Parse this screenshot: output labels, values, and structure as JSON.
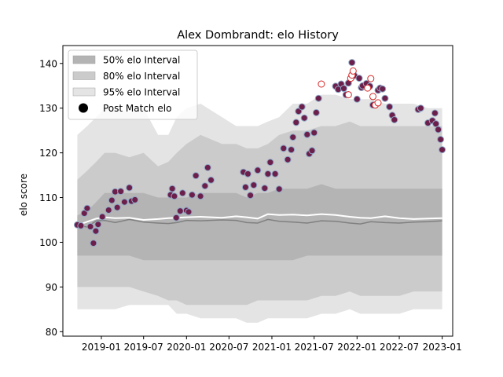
{
  "chart_data": {
    "type": "scatter",
    "title": "Alex Dombrandt: elo History",
    "xlabel": "",
    "ylabel": "elo score",
    "x_axis_kind": "date",
    "xlim": [
      "2018-07-20",
      "2023-02-15"
    ],
    "ylim": [
      79,
      144
    ],
    "xticks": [
      "2019-01",
      "2019-07",
      "2020-01",
      "2020-07",
      "2021-01",
      "2021-07",
      "2022-01",
      "2022-07",
      "2023-01"
    ],
    "yticks": [
      80,
      90,
      100,
      110,
      120,
      130,
      140
    ],
    "legend_position": "top-left",
    "legend": [
      {
        "key": "band50",
        "label": "50% elo Interval"
      },
      {
        "key": "band80",
        "label": "80% elo Interval"
      },
      {
        "key": "band95",
        "label": "95% elo Interval"
      },
      {
        "key": "post",
        "label": "Post Match elo"
      }
    ],
    "colors": {
      "band50": "#b4b4b4",
      "band80": "#cbcbcb",
      "band95": "#e4e4e4",
      "mean_line": "#ffffff",
      "median_line": "#808080",
      "point_fill": "#6b1f4a",
      "point_edge": "#8fa8c8",
      "open_point_edge": "#d62728"
    },
    "intervals": {
      "x": [
        "2018-09-20",
        "2018-11-01",
        "2018-12-10",
        "2019-01-15",
        "2019-03-01",
        "2019-05-01",
        "2019-07-01",
        "2019-09-01",
        "2019-10-15",
        "2019-11-20",
        "2020-01-01",
        "2020-03-01",
        "2020-06-01",
        "2020-08-01",
        "2020-09-15",
        "2020-11-01",
        "2020-12-15",
        "2021-02-01",
        "2021-04-01",
        "2021-06-01",
        "2021-08-01",
        "2021-10-01",
        "2021-12-01",
        "2022-01-15",
        "2022-03-01",
        "2022-05-01",
        "2022-07-01",
        "2022-09-01",
        "2022-11-01",
        "2023-01-01"
      ],
      "band95": {
        "upper": [
          124,
          126,
          128,
          130,
          130,
          129,
          130,
          124,
          124,
          128,
          130,
          131,
          128,
          126,
          126,
          126,
          127,
          128,
          131,
          131,
          133,
          133,
          132,
          132,
          132,
          131,
          131,
          131,
          130,
          130
        ],
        "lower": [
          85,
          85,
          85,
          85,
          85,
          86,
          86,
          86,
          86,
          84,
          84,
          83,
          83,
          83,
          82,
          82,
          83,
          83,
          83,
          83,
          84,
          84,
          85,
          84,
          84,
          84,
          84,
          85,
          85,
          85
        ]
      },
      "band80": {
        "upper": [
          114,
          116,
          118,
          120,
          120,
          119,
          120,
          117,
          118,
          120,
          122,
          124,
          122,
          122,
          121,
          121,
          122,
          124,
          125,
          125,
          126,
          126,
          127,
          126,
          126,
          126,
          126,
          126,
          126,
          126
        ],
        "lower": [
          90,
          90,
          90,
          90,
          90,
          90,
          89,
          88,
          87,
          87,
          86,
          86,
          86,
          86,
          86,
          87,
          87,
          87,
          87,
          87,
          88,
          88,
          89,
          88,
          88,
          88,
          88,
          89,
          89,
          89
        ]
      },
      "band50": {
        "upper": [
          106,
          107,
          109,
          111,
          111,
          111,
          111,
          110,
          110,
          110,
          110,
          111,
          111,
          111,
          110,
          111,
          111,
          112,
          112,
          112,
          113,
          112,
          112,
          112,
          112,
          112,
          112,
          112,
          112,
          112
        ],
        "lower": [
          97,
          97,
          97,
          97,
          97,
          97,
          96,
          96,
          96,
          96,
          96,
          96,
          96,
          96,
          96,
          96,
          96,
          96,
          96,
          97,
          97,
          97,
          97,
          97,
          97,
          97,
          97,
          97,
          97,
          97
        ]
      },
      "mean": [
        103.8,
        104.6,
        105.3,
        105.6,
        105.4,
        105.5,
        105.0,
        105.2,
        105.4,
        105.5,
        105.6,
        105.7,
        105.5,
        105.8,
        105.6,
        105.3,
        106.3,
        106.1,
        106.2,
        106.0,
        106.3,
        106.1,
        105.7,
        105.5,
        105.4,
        105.8,
        105.4,
        105.2,
        105.3,
        105.4
      ],
      "median": [
        103.8,
        103.4,
        104.8,
        104.9,
        104.4,
        105.1,
        104.5,
        104.3,
        104.2,
        104.4,
        104.9,
        104.8,
        105.0,
        104.9,
        104.4,
        104.3,
        105.1,
        104.7,
        104.5,
        104.3,
        104.8,
        104.7,
        104.3,
        104.1,
        104.6,
        104.4,
        104.3,
        104.5,
        104.6,
        104.8
      ]
    },
    "series": [
      {
        "key": "post",
        "name": "Post Match elo",
        "marker": "filled",
        "points": [
          [
            "2018-09-20",
            103.9
          ],
          [
            "2018-10-05",
            103.7
          ],
          [
            "2018-10-20",
            106.5
          ],
          [
            "2018-11-01",
            107.6
          ],
          [
            "2018-11-15",
            103.5
          ],
          [
            "2018-11-28",
            99.8
          ],
          [
            "2018-12-08",
            102.5
          ],
          [
            "2018-12-18",
            104.0
          ],
          [
            "2019-01-05",
            105.7
          ],
          [
            "2019-02-01",
            107.2
          ],
          [
            "2019-02-15",
            109.4
          ],
          [
            "2019-03-01",
            111.3
          ],
          [
            "2019-03-10",
            107.8
          ],
          [
            "2019-03-25",
            111.4
          ],
          [
            "2019-04-10",
            109.0
          ],
          [
            "2019-05-01",
            112.2
          ],
          [
            "2019-05-10",
            109.2
          ],
          [
            "2019-05-25",
            109.5
          ],
          [
            "2019-10-25",
            110.6
          ],
          [
            "2019-11-01",
            112.0
          ],
          [
            "2019-11-10",
            110.3
          ],
          [
            "2019-11-18",
            105.5
          ],
          [
            "2019-12-05",
            107.0
          ],
          [
            "2019-12-15",
            111.0
          ],
          [
            "2020-01-01",
            107.1
          ],
          [
            "2020-01-10",
            106.8
          ],
          [
            "2020-01-25",
            110.6
          ],
          [
            "2020-02-10",
            114.9
          ],
          [
            "2020-03-01",
            110.3
          ],
          [
            "2020-03-20",
            112.6
          ],
          [
            "2020-04-01",
            116.7
          ],
          [
            "2020-04-15",
            113.9
          ],
          [
            "2020-09-01",
            115.7
          ],
          [
            "2020-09-10",
            112.3
          ],
          [
            "2020-09-20",
            115.3
          ],
          [
            "2020-10-01",
            110.5
          ],
          [
            "2020-10-15",
            112.8
          ],
          [
            "2020-11-01",
            116.1
          ],
          [
            "2020-12-01",
            112.1
          ],
          [
            "2020-12-15",
            115.3
          ],
          [
            "2020-12-25",
            117.9
          ],
          [
            "2021-01-15",
            115.3
          ],
          [
            "2021-02-01",
            111.9
          ],
          [
            "2021-02-20",
            121.0
          ],
          [
            "2021-03-10",
            118.5
          ],
          [
            "2021-03-25",
            120.7
          ],
          [
            "2021-04-01",
            123.5
          ],
          [
            "2021-04-15",
            126.8
          ],
          [
            "2021-04-25",
            129.3
          ],
          [
            "2021-05-10",
            130.3
          ],
          [
            "2021-05-20",
            127.8
          ],
          [
            "2021-06-01",
            124.1
          ],
          [
            "2021-06-10",
            119.8
          ],
          [
            "2021-06-22",
            120.5
          ],
          [
            "2021-07-01",
            124.5
          ],
          [
            "2021-07-10",
            129.0
          ],
          [
            "2021-07-20",
            132.2
          ],
          [
            "2021-10-01",
            134.9
          ],
          [
            "2021-10-12",
            134.2
          ],
          [
            "2021-10-25",
            135.4
          ],
          [
            "2021-11-05",
            134.4
          ],
          [
            "2021-11-15",
            133.0
          ],
          [
            "2021-11-25",
            135.6
          ],
          [
            "2021-12-10",
            140.2
          ],
          [
            "2021-12-20",
            137.3
          ],
          [
            "2022-01-01",
            132.0
          ],
          [
            "2022-01-10",
            136.7
          ],
          [
            "2022-01-20",
            134.6
          ],
          [
            "2022-01-25",
            135.0
          ],
          [
            "2022-02-10",
            135.5
          ],
          [
            "2022-02-25",
            134.9
          ],
          [
            "2022-03-10",
            130.7
          ],
          [
            "2022-04-01",
            134.0
          ],
          [
            "2022-04-10",
            134.5
          ],
          [
            "2022-04-20",
            134.3
          ],
          [
            "2022-05-01",
            132.2
          ],
          [
            "2022-05-20",
            130.3
          ],
          [
            "2022-06-01",
            128.4
          ],
          [
            "2022-06-10",
            127.4
          ],
          [
            "2022-09-20",
            129.7
          ],
          [
            "2022-10-01",
            130.0
          ],
          [
            "2022-11-01",
            126.7
          ],
          [
            "2022-11-20",
            127.2
          ],
          [
            "2022-12-01",
            128.9
          ],
          [
            "2022-12-05",
            126.5
          ],
          [
            "2022-12-15",
            125.2
          ],
          [
            "2022-12-25",
            123.0
          ],
          [
            "2023-01-01",
            120.7
          ]
        ]
      },
      {
        "key": "open",
        "name": "",
        "marker": "open",
        "points": [
          [
            "2021-08-01",
            135.4
          ],
          [
            "2021-11-25",
            133.0
          ],
          [
            "2021-12-05",
            136.7
          ],
          [
            "2021-12-10",
            137.4
          ],
          [
            "2021-12-15",
            138.3
          ],
          [
            "2022-02-15",
            134.5
          ],
          [
            "2022-03-01",
            136.6
          ],
          [
            "2022-03-10",
            132.6
          ],
          [
            "2022-03-20",
            130.7
          ],
          [
            "2022-04-01",
            131.2
          ]
        ]
      }
    ]
  }
}
